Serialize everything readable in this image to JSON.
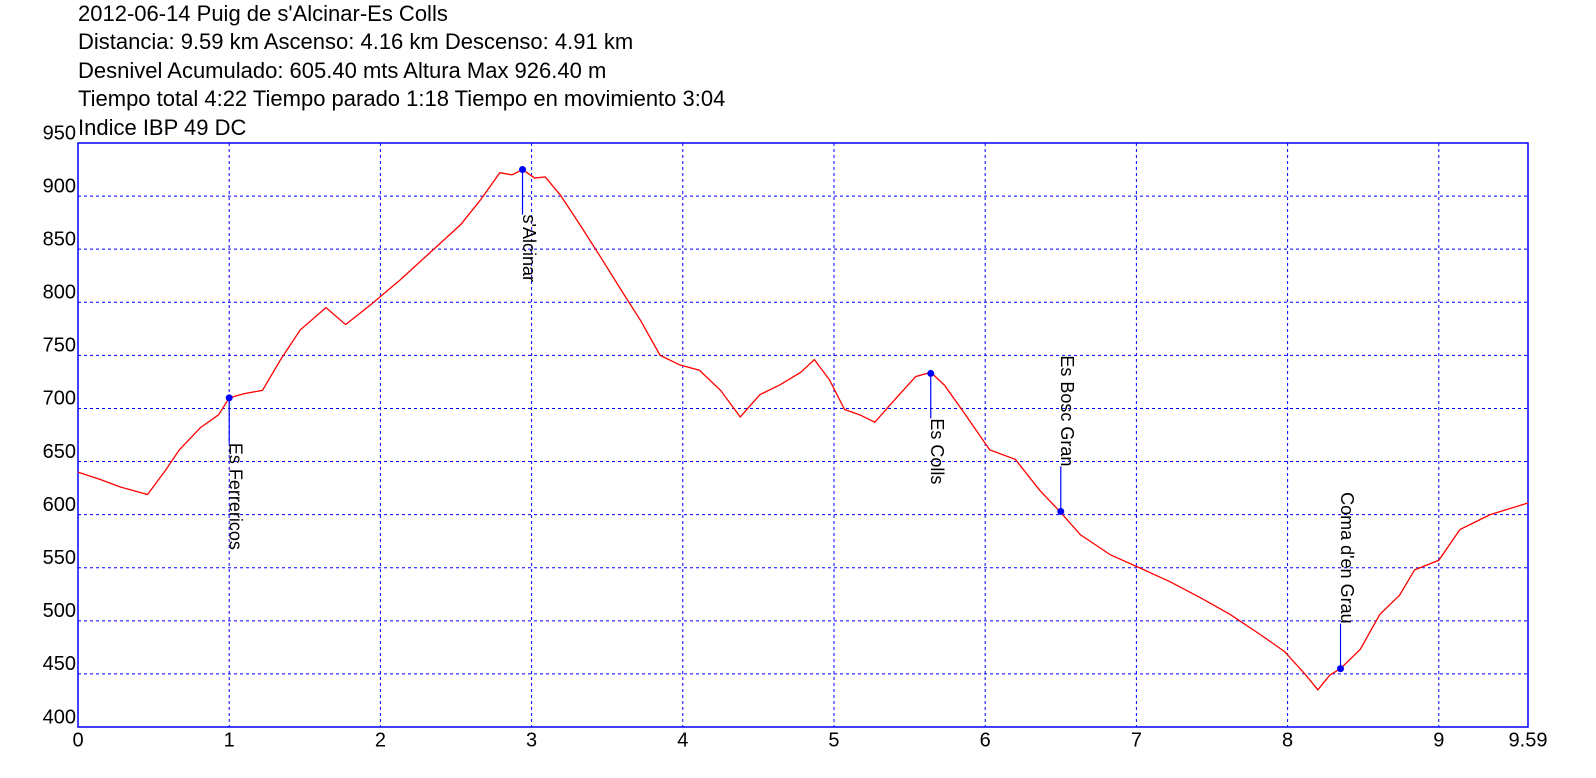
{
  "chart_data": {
    "type": "line",
    "title": "2012-06-14 Puig de s'Alcinar-Es Colls",
    "subtitle_lines": [
      "Distancia: 9.59 km Ascenso: 4.16 km Descenso: 4.91 km",
      "Desnivel Acumulado: 605.40 mts  Altura Max 926.40 m",
      "Tiempo total 4:22 Tiempo parado 1:18 Tiempo en movimiento 3:04",
      "Indice IBP 49 DC"
    ],
    "xlim": [
      0,
      9.59
    ],
    "ylim": [
      400,
      950
    ],
    "xticks": [
      0,
      1,
      2,
      3,
      4,
      5,
      6,
      7,
      8,
      9,
      9.59
    ],
    "yticks": [
      400,
      450,
      500,
      550,
      600,
      650,
      700,
      750,
      800,
      850,
      900,
      950
    ],
    "grid": true,
    "grid_color": "#0000ff",
    "frame_color": "#0000ff",
    "series": [
      {
        "color": "#ff0000",
        "x": [
          0,
          0.15,
          0.28,
          0.46,
          0.58,
          0.67,
          0.81,
          0.93,
          1.0,
          1.1,
          1.22,
          1.34,
          1.47,
          1.64,
          1.77,
          1.93,
          2.13,
          2.33,
          2.53,
          2.66,
          2.79,
          2.87,
          2.94,
          3.02,
          3.09,
          3.19,
          3.32,
          3.45,
          3.59,
          3.72,
          3.85,
          3.98,
          4.11,
          4.25,
          4.38,
          4.51,
          4.64,
          4.78,
          4.87,
          4.97,
          5.07,
          5.17,
          5.27,
          5.4,
          5.54,
          5.64,
          5.73,
          5.87,
          6.03,
          6.2,
          6.36,
          6.5,
          6.63,
          6.83,
          7.02,
          7.22,
          7.42,
          7.62,
          7.82,
          7.98,
          8.12,
          8.2,
          8.28,
          8.35,
          8.48,
          8.61,
          8.74,
          8.84,
          9.0,
          9.14,
          9.34,
          9.59
        ],
        "values": [
          640,
          633,
          626,
          619,
          642,
          661,
          682,
          694,
          710,
          714,
          717,
          746,
          774,
          795,
          779,
          797,
          821,
          847,
          873,
          896,
          922,
          920,
          925,
          917,
          918,
          901,
          873,
          844,
          812,
          783,
          750,
          741,
          736,
          717,
          692,
          713,
          722,
          734,
          746,
          727,
          699,
          694,
          687,
          708,
          730,
          734,
          722,
          694,
          661,
          652,
          623,
          602,
          581,
          562,
          550,
          537,
          522,
          506,
          487,
          471,
          449,
          435,
          449,
          455,
          473,
          506,
          524,
          548,
          557,
          586,
          600,
          611
        ]
      }
    ],
    "waypoint_color": "#0000ff",
    "waypoints": [
      {
        "name": "Es Ferrericos",
        "x": 1.0,
        "y": 710,
        "label_side": "below"
      },
      {
        "name": "s'Alcinar",
        "x": 2.94,
        "y": 925,
        "label_side": "below"
      },
      {
        "name": "Es Colls",
        "x": 5.64,
        "y": 733,
        "label_side": "below"
      },
      {
        "name": "Es Bosc Gran",
        "x": 6.5,
        "y": 603,
        "label_side": "above"
      },
      {
        "name": "Coma d'en Grau",
        "x": 8.35,
        "y": 455,
        "label_side": "above"
      }
    ]
  }
}
